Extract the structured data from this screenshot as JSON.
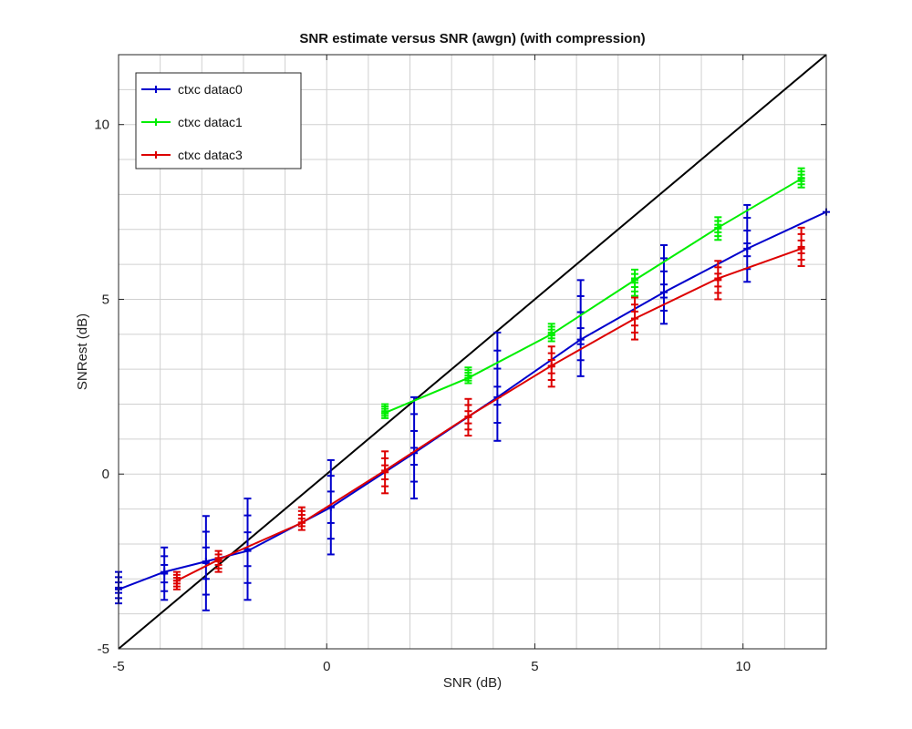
{
  "chart_data": {
    "type": "line",
    "title": "SNR estimate versus SNR (awgn) (with compression)",
    "xlabel": "SNR (dB)",
    "ylabel": "SNRest (dB)",
    "xlim": [
      -5,
      12
    ],
    "ylim": [
      -5,
      12
    ],
    "xticks": [
      -5,
      0,
      5,
      10
    ],
    "yticks": [
      -5,
      0,
      5,
      10
    ],
    "grid": true,
    "minor_grid_step": 1,
    "legend_position": "top-left",
    "reference_line": {
      "x": [
        -5,
        12
      ],
      "y": [
        -5,
        12
      ],
      "color": "#000000"
    },
    "series": [
      {
        "name": "ctxc datac0",
        "color": "#0000cc",
        "x": [
          -5.0,
          -3.9,
          -2.9,
          -1.9,
          0.1,
          2.1,
          4.1,
          6.1,
          8.1,
          10.1,
          12.0
        ],
        "y": [
          -3.3,
          -2.8,
          -2.5,
          -2.2,
          -0.95,
          0.6,
          2.2,
          3.85,
          5.2,
          6.45,
          7.5
        ],
        "y_low": [
          -3.7,
          -3.6,
          -3.9,
          -3.6,
          -2.3,
          -0.7,
          0.95,
          2.8,
          4.3,
          5.5,
          null
        ],
        "y_high": [
          -2.8,
          -2.1,
          -1.2,
          -0.7,
          0.4,
          2.2,
          4.05,
          5.55,
          6.55,
          7.7,
          null
        ]
      },
      {
        "name": "ctxc datac1",
        "color": "#00ee00",
        "x": [
          1.4,
          3.4,
          5.4,
          7.4,
          9.4,
          11.4
        ],
        "y": [
          1.75,
          2.75,
          4.0,
          5.55,
          7.05,
          8.45
        ],
        "y_low": [
          1.6,
          2.6,
          3.8,
          5.1,
          6.7,
          8.2
        ],
        "y_high": [
          2.0,
          3.05,
          4.3,
          5.85,
          7.35,
          8.75
        ]
      },
      {
        "name": "ctxc datac3",
        "color": "#dd0000",
        "x": [
          -3.6,
          -2.6,
          -0.6,
          1.4,
          3.4,
          5.4,
          7.4,
          9.4,
          11.4
        ],
        "y": [
          -3.05,
          -2.45,
          -1.4,
          0.1,
          1.65,
          3.1,
          4.45,
          5.6,
          6.45
        ],
        "y_low": [
          -3.3,
          -2.8,
          -1.6,
          -0.55,
          1.1,
          2.5,
          3.85,
          5.0,
          5.95
        ],
        "y_high": [
          -2.8,
          -2.2,
          -0.95,
          0.65,
          2.15,
          3.65,
          5.05,
          6.1,
          7.05
        ]
      }
    ]
  }
}
